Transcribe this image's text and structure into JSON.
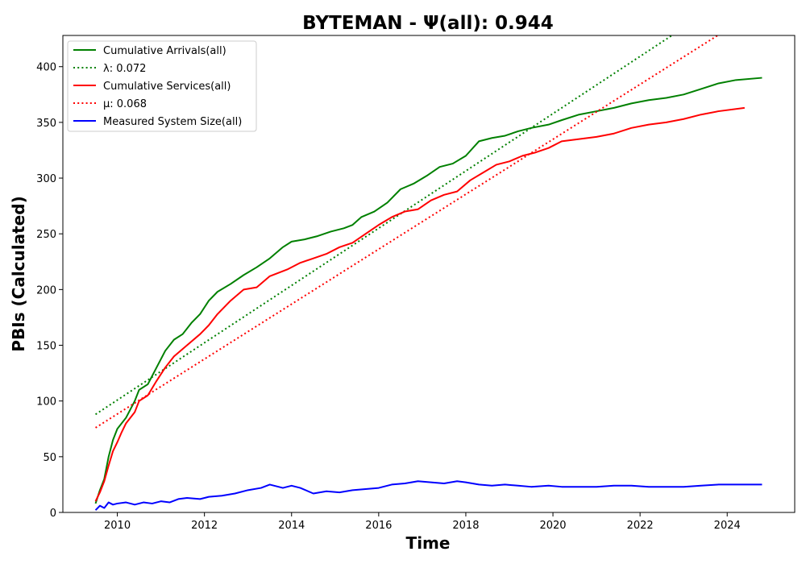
{
  "chart_data": {
    "type": "line",
    "title": "BYTEMAN -  Ψ(all): 0.944",
    "xlabel": "Time",
    "ylabel": "PBIs (Calculated)",
    "xlim": [
      2008.75,
      2025.55
    ],
    "ylim": [
      0,
      428
    ],
    "xticks": [
      2010,
      2012,
      2014,
      2016,
      2018,
      2020,
      2022,
      2024
    ],
    "yticks": [
      0,
      50,
      100,
      150,
      200,
      250,
      300,
      350,
      400
    ],
    "grid": false,
    "legend_position": "top-left",
    "series": [
      {
        "name": "Cumulative Arrivals(all)",
        "color": "#008000",
        "style": "solid",
        "points": [
          [
            2009.5,
            8
          ],
          [
            2009.6,
            20
          ],
          [
            2009.7,
            30
          ],
          [
            2009.8,
            50
          ],
          [
            2009.9,
            65
          ],
          [
            2010.0,
            75
          ],
          [
            2010.2,
            85
          ],
          [
            2010.4,
            100
          ],
          [
            2010.5,
            110
          ],
          [
            2010.7,
            115
          ],
          [
            2010.9,
            130
          ],
          [
            2011.1,
            145
          ],
          [
            2011.3,
            155
          ],
          [
            2011.5,
            160
          ],
          [
            2011.7,
            170
          ],
          [
            2011.9,
            178
          ],
          [
            2012.1,
            190
          ],
          [
            2012.3,
            198
          ],
          [
            2012.6,
            205
          ],
          [
            2012.9,
            213
          ],
          [
            2013.2,
            220
          ],
          [
            2013.5,
            228
          ],
          [
            2013.8,
            238
          ],
          [
            2014.0,
            243
          ],
          [
            2014.3,
            245
          ],
          [
            2014.6,
            248
          ],
          [
            2014.9,
            252
          ],
          [
            2015.2,
            255
          ],
          [
            2015.4,
            258
          ],
          [
            2015.6,
            265
          ],
          [
            2015.9,
            270
          ],
          [
            2016.2,
            278
          ],
          [
            2016.5,
            290
          ],
          [
            2016.8,
            295
          ],
          [
            2017.1,
            302
          ],
          [
            2017.4,
            310
          ],
          [
            2017.7,
            313
          ],
          [
            2018.0,
            320
          ],
          [
            2018.3,
            333
          ],
          [
            2018.6,
            336
          ],
          [
            2018.9,
            338
          ],
          [
            2019.2,
            342
          ],
          [
            2019.5,
            345
          ],
          [
            2019.9,
            348
          ],
          [
            2020.2,
            352
          ],
          [
            2020.6,
            357
          ],
          [
            2021.0,
            360
          ],
          [
            2021.4,
            363
          ],
          [
            2021.8,
            367
          ],
          [
            2022.2,
            370
          ],
          [
            2022.6,
            372
          ],
          [
            2023.0,
            375
          ],
          [
            2023.4,
            380
          ],
          [
            2023.8,
            385
          ],
          [
            2024.2,
            388
          ],
          [
            2024.8,
            390
          ]
        ]
      },
      {
        "name": "λ: 0.072",
        "color": "#008000",
        "style": "dotted",
        "points": [
          [
            2009.5,
            88
          ],
          [
            2022.73,
            428
          ]
        ]
      },
      {
        "name": "Cumulative Services(all)",
        "color": "#ff0000",
        "style": "solid",
        "points": [
          [
            2009.5,
            10
          ],
          [
            2009.6,
            18
          ],
          [
            2009.7,
            28
          ],
          [
            2009.8,
            42
          ],
          [
            2009.9,
            55
          ],
          [
            2010.0,
            63
          ],
          [
            2010.1,
            72
          ],
          [
            2010.2,
            80
          ],
          [
            2010.4,
            90
          ],
          [
            2010.5,
            100
          ],
          [
            2010.7,
            105
          ],
          [
            2010.9,
            118
          ],
          [
            2011.1,
            130
          ],
          [
            2011.3,
            140
          ],
          [
            2011.6,
            150
          ],
          [
            2011.9,
            160
          ],
          [
            2012.1,
            168
          ],
          [
            2012.3,
            178
          ],
          [
            2012.6,
            190
          ],
          [
            2012.9,
            200
          ],
          [
            2013.2,
            202
          ],
          [
            2013.5,
            212
          ],
          [
            2013.9,
            218
          ],
          [
            2014.2,
            224
          ],
          [
            2014.5,
            228
          ],
          [
            2014.8,
            232
          ],
          [
            2015.1,
            238
          ],
          [
            2015.4,
            242
          ],
          [
            2015.7,
            250
          ],
          [
            2016.0,
            258
          ],
          [
            2016.3,
            265
          ],
          [
            2016.6,
            270
          ],
          [
            2016.9,
            272
          ],
          [
            2017.2,
            280
          ],
          [
            2017.5,
            285
          ],
          [
            2017.8,
            288
          ],
          [
            2018.1,
            298
          ],
          [
            2018.4,
            305
          ],
          [
            2018.7,
            312
          ],
          [
            2019.0,
            315
          ],
          [
            2019.3,
            320
          ],
          [
            2019.6,
            323
          ],
          [
            2019.9,
            327
          ],
          [
            2020.2,
            333
          ],
          [
            2020.6,
            335
          ],
          [
            2021.0,
            337
          ],
          [
            2021.4,
            340
          ],
          [
            2021.8,
            345
          ],
          [
            2022.2,
            348
          ],
          [
            2022.6,
            350
          ],
          [
            2023.0,
            353
          ],
          [
            2023.4,
            357
          ],
          [
            2023.8,
            360
          ],
          [
            2024.4,
            363
          ]
        ]
      },
      {
        "name": "μ: 0.068",
        "color": "#ff0000",
        "style": "dotted",
        "points": [
          [
            2009.5,
            76
          ],
          [
            2023.78,
            428
          ]
        ]
      },
      {
        "name": "Measured System Size(all)",
        "color": "#0000ff",
        "style": "solid",
        "points": [
          [
            2009.5,
            2
          ],
          [
            2009.6,
            6
          ],
          [
            2009.7,
            4
          ],
          [
            2009.8,
            9
          ],
          [
            2009.9,
            7
          ],
          [
            2010.0,
            8
          ],
          [
            2010.2,
            9
          ],
          [
            2010.4,
            7
          ],
          [
            2010.6,
            9
          ],
          [
            2010.8,
            8
          ],
          [
            2011.0,
            10
          ],
          [
            2011.2,
            9
          ],
          [
            2011.4,
            12
          ],
          [
            2011.6,
            13
          ],
          [
            2011.9,
            12
          ],
          [
            2012.1,
            14
          ],
          [
            2012.4,
            15
          ],
          [
            2012.7,
            17
          ],
          [
            2013.0,
            20
          ],
          [
            2013.3,
            22
          ],
          [
            2013.5,
            25
          ],
          [
            2013.8,
            22
          ],
          [
            2014.0,
            24
          ],
          [
            2014.2,
            22
          ],
          [
            2014.5,
            17
          ],
          [
            2014.8,
            19
          ],
          [
            2015.1,
            18
          ],
          [
            2015.4,
            20
          ],
          [
            2015.7,
            21
          ],
          [
            2016.0,
            22
          ],
          [
            2016.3,
            25
          ],
          [
            2016.6,
            26
          ],
          [
            2016.9,
            28
          ],
          [
            2017.2,
            27
          ],
          [
            2017.5,
            26
          ],
          [
            2017.8,
            28
          ],
          [
            2018.0,
            27
          ],
          [
            2018.3,
            25
          ],
          [
            2018.6,
            24
          ],
          [
            2018.9,
            25
          ],
          [
            2019.2,
            24
          ],
          [
            2019.5,
            23
          ],
          [
            2019.9,
            24
          ],
          [
            2020.2,
            23
          ],
          [
            2020.6,
            23
          ],
          [
            2021.0,
            23
          ],
          [
            2021.4,
            24
          ],
          [
            2021.8,
            24
          ],
          [
            2022.2,
            23
          ],
          [
            2022.6,
            23
          ],
          [
            2023.0,
            23
          ],
          [
            2023.4,
            24
          ],
          [
            2023.8,
            25
          ],
          [
            2024.2,
            25
          ],
          [
            2024.8,
            25
          ]
        ]
      }
    ]
  }
}
